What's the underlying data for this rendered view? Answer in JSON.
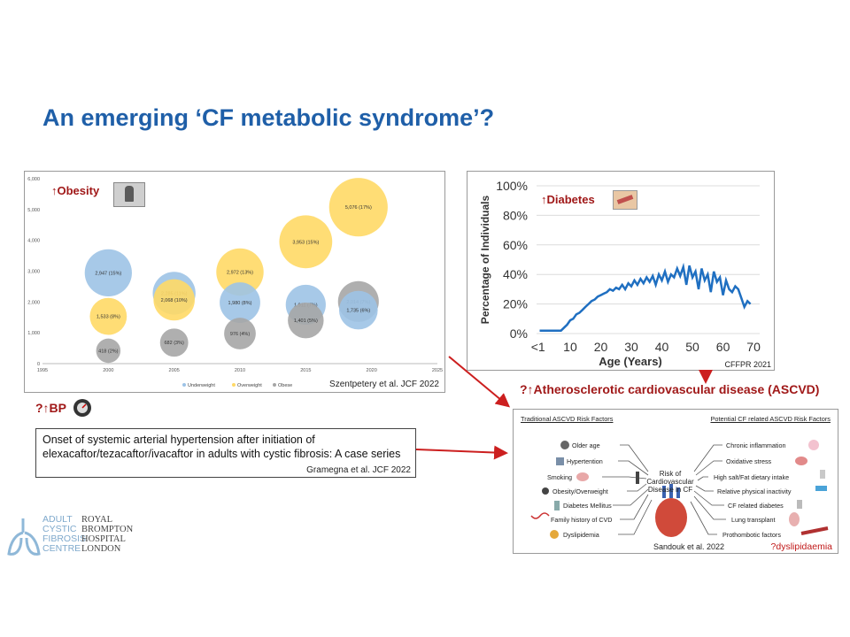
{
  "title": "An emerging ‘CF metabolic syndrome’?",
  "obesity_panel": {
    "tag": "↑Obesity",
    "citation": "Szentpetery et al. JCF 2022",
    "chart_data": {
      "type": "scatter",
      "title": "",
      "xlabel": "",
      "ylabel": "",
      "xlim": [
        1995,
        2025
      ],
      "ylim": [
        0,
        6000
      ],
      "x_ticks": [
        "1995",
        "2000",
        "2005",
        "2010",
        "2015",
        "2020",
        "2025"
      ],
      "y_ticks": [
        "0",
        "1,000",
        "2,000",
        "3,000",
        "4,000",
        "5,000",
        "6,000"
      ],
      "legend": [
        "Underweight",
        "Overweight",
        "Obese"
      ],
      "legend_position": "bottom",
      "series": [
        {
          "name": "Underweight",
          "color": "#9dc3e6",
          "points": [
            {
              "x": 2000,
              "y": 2947,
              "label": "2,947 (15%)"
            },
            {
              "x": 2005,
              "y": 2285,
              "label": "2,285 (11%)"
            },
            {
              "x": 2010,
              "y": 1980,
              "label": "1,980 (8%)"
            },
            {
              "x": 2015,
              "y": 1911,
              "label": "1,911 (7%)"
            },
            {
              "x": 2019,
              "y": 1735,
              "label": "1,735 (6%)"
            }
          ]
        },
        {
          "name": "Overweight",
          "color": "#ffd966",
          "points": [
            {
              "x": 2000,
              "y": 1533,
              "label": "1,533 (8%)"
            },
            {
              "x": 2005,
              "y": 2068,
              "label": "2,068 (10%)"
            },
            {
              "x": 2010,
              "y": 2972,
              "label": "2,972 (13%)"
            },
            {
              "x": 2015,
              "y": 3953,
              "label": "3,953 (15%)"
            },
            {
              "x": 2019,
              "y": 5076,
              "label": "5,076 (17%)"
            }
          ]
        },
        {
          "name": "Obese",
          "color": "#a6a6a6",
          "points": [
            {
              "x": 2000,
              "y": 418,
              "label": "418 (2%)"
            },
            {
              "x": 2005,
              "y": 682,
              "label": "682 (3%)"
            },
            {
              "x": 2010,
              "y": 976,
              "label": "976 (4%)"
            },
            {
              "x": 2015,
              "y": 1401,
              "label": "1,401 (5%)"
            },
            {
              "x": 2019,
              "y": 2014,
              "label": "2,014 (7%)"
            }
          ]
        }
      ]
    }
  },
  "diabetes_panel": {
    "tag": "↑Diabetes",
    "citation": "CFFPR 2021",
    "chart_data": {
      "type": "line",
      "title": "",
      "xlabel": "Age (Years)",
      "ylabel": "Percentage of Individuals",
      "xlim": [
        -1,
        72
      ],
      "ylim": [
        0,
        100
      ],
      "x_ticks": [
        "<1",
        "10",
        "20",
        "30",
        "40",
        "50",
        "60",
        "70"
      ],
      "y_ticks": [
        "0%",
        "20%",
        "40%",
        "60%",
        "80%",
        "100%"
      ],
      "grid": true,
      "series": [
        {
          "name": "",
          "color": "#1f6fc1",
          "x": [
            0,
            1,
            2,
            3,
            4,
            5,
            6,
            7,
            8,
            9,
            10,
            11,
            12,
            13,
            14,
            15,
            16,
            17,
            18,
            19,
            20,
            21,
            22,
            23,
            24,
            25,
            26,
            27,
            28,
            29,
            30,
            31,
            32,
            33,
            34,
            35,
            36,
            37,
            38,
            39,
            40,
            41,
            42,
            43,
            44,
            45,
            46,
            47,
            48,
            49,
            50,
            51,
            52,
            53,
            54,
            55,
            56,
            57,
            58,
            59,
            60,
            61,
            62,
            63,
            64,
            65,
            66,
            67,
            68,
            69
          ],
          "y": [
            2,
            2,
            2,
            2,
            2,
            2,
            2,
            2,
            4,
            6,
            9,
            10,
            13,
            14,
            16,
            18,
            20,
            22,
            23,
            25,
            26,
            27,
            28,
            30,
            29,
            31,
            30,
            33,
            30,
            34,
            32,
            36,
            33,
            37,
            34,
            38,
            35,
            39,
            33,
            40,
            36,
            42,
            35,
            40,
            38,
            44,
            39,
            45,
            33,
            46,
            38,
            42,
            30,
            44,
            36,
            40,
            28,
            42,
            35,
            38,
            26,
            36,
            30,
            28,
            32,
            30,
            24,
            18,
            22,
            20
          ]
        }
      ]
    }
  },
  "bp": {
    "tag": "?↑BP",
    "paper_title": "Onset of systemic arterial hypertension after initiation of elexacaftor/tezacaftor/ivacaftor in adults with cystic fibrosis: A case series",
    "citation": "Gramegna et al. JCF 2022"
  },
  "ascvd": {
    "heading": "?↑Atherosclerotic cardiovascular disease (ASCVD)",
    "traditional_header": "Traditional ASCVD Risk Factors",
    "cf_header": "Potential CF related ASCVD Risk Factors",
    "center_label": "Risk of Cardiovascular Disease in CF",
    "traditional": [
      "Older age",
      "Hypertention",
      "Smoking",
      "Obesity/Overweight",
      "Diabetes Mellitus",
      "Family history of CVD",
      "Dyslipidemia"
    ],
    "cf_related": [
      "Chronic inflammation",
      "Oxidative stress",
      "High salt/Fat dietary intake",
      "Relative physical inactivity",
      "CF related diabetes",
      "Lung transplant",
      "Prothombotic factors"
    ],
    "citation": "Sandouk et al. 2022",
    "dyslipidaemia_note": "?dyslipidaemia"
  },
  "logo": {
    "left_lines": [
      "ADULT",
      "CYSTIC",
      "FIBROSIS",
      "CENTRE"
    ],
    "right_lines": [
      "ROYAL",
      "BROMPTON",
      "HOSPITAL",
      "LONDON"
    ]
  }
}
